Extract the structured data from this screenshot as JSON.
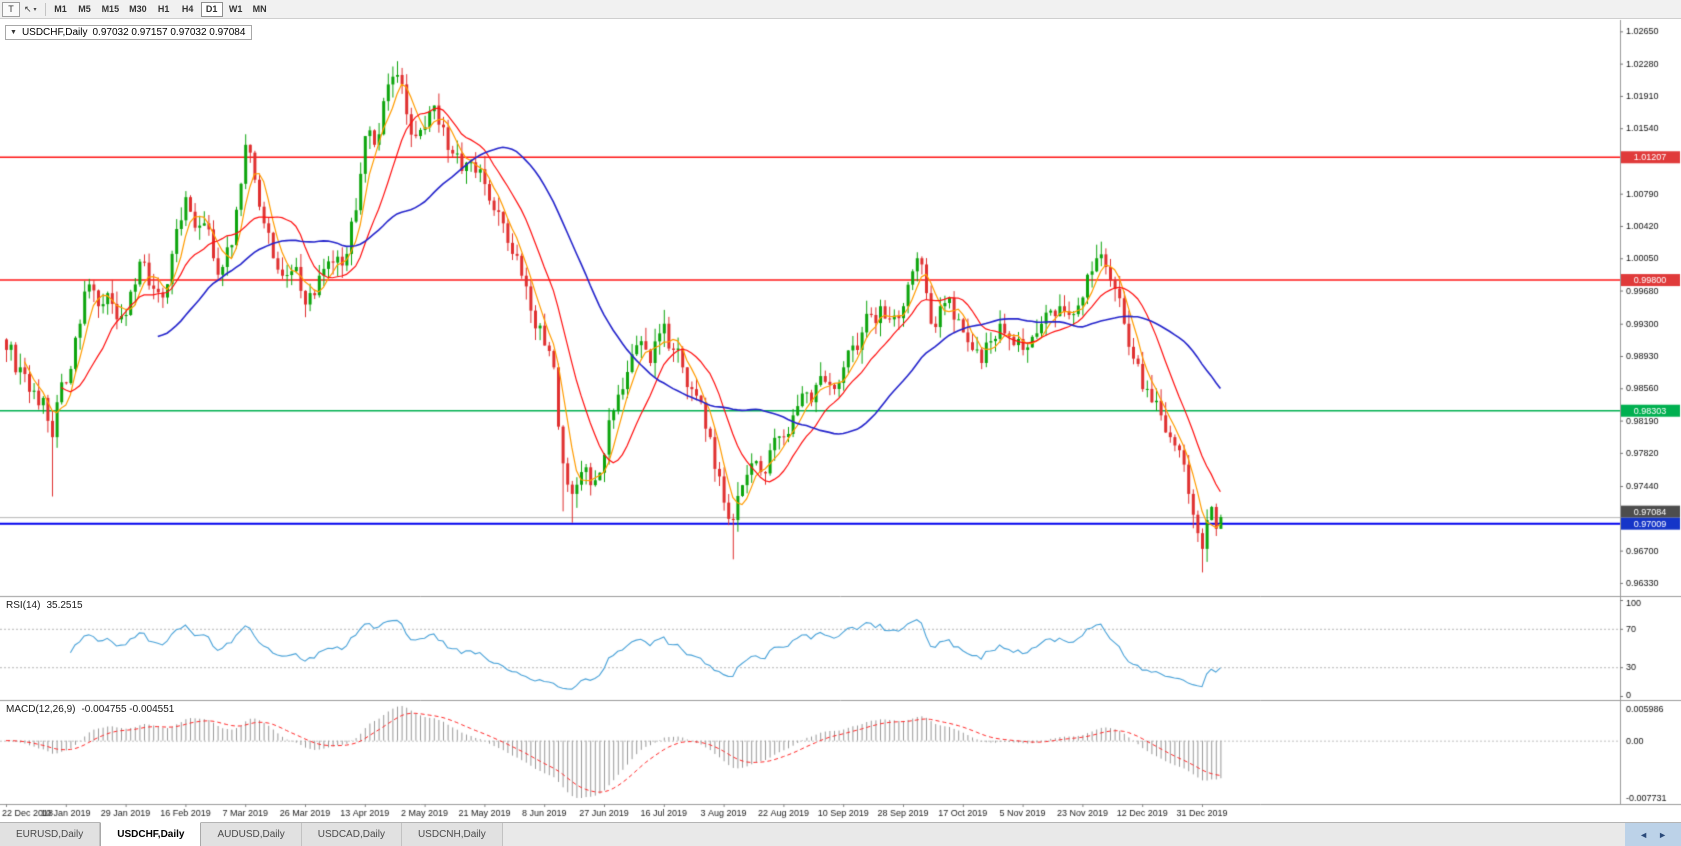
{
  "toolbar": {
    "tool1": "T",
    "tool2": "↖",
    "caret": "▾",
    "timeframes": [
      "M1",
      "M5",
      "M15",
      "M30",
      "H1",
      "H4",
      "D1",
      "W1",
      "MN"
    ],
    "active_timeframe": "D1"
  },
  "chart_header": {
    "collapse_icon": "▼",
    "symbol": "USDCHF,Daily",
    "ohlc": "0.97032 0.97157 0.97032 0.97084"
  },
  "rsi_header": {
    "label": "RSI(14)",
    "value": "35.2515"
  },
  "macd_header": {
    "label": "MACD(12,26,9)",
    "values": "-0.004755 -0.004551"
  },
  "tabs": [
    {
      "label": "EURUSD,Daily",
      "active": false
    },
    {
      "label": "USDCHF,Daily",
      "active": true
    },
    {
      "label": "AUDUSD,Daily",
      "active": false
    },
    {
      "label": "USDCAD,Daily",
      "active": false
    },
    {
      "label": "USDCNH,Daily",
      "active": false
    }
  ],
  "tab_nav": {
    "left": "◄",
    "right": "►"
  },
  "chart_data": {
    "type": "candlestick",
    "symbol": "USDCHF",
    "timeframe": "Daily",
    "x_labels": [
      "22 Dec 2018",
      "10 Jan 2019",
      "29 Jan 2019",
      "16 Feb 2019",
      "7 Mar 2019",
      "26 Mar 2019",
      "13 Apr 2019",
      "2 May 2019",
      "21 May 2019",
      "8 Jun 2019",
      "27 Jun 2019",
      "16 Jul 2019",
      "3 Aug 2019",
      "22 Aug 2019",
      "10 Sep 2019",
      "28 Sep 2019",
      "17 Oct 2019",
      "5 Nov 2019",
      "23 Nov 2019",
      "12 Dec 2019",
      "31 Dec 2019"
    ],
    "label_step": 13,
    "num_candles": 265,
    "price_axis": {
      "min": 0.9618,
      "max": 1.0278,
      "ticks": [
        "1.02650",
        "1.02280",
        "1.01910",
        "1.01540",
        "1.00790",
        "1.00420",
        "1.00050",
        "0.99680",
        "0.99300",
        "0.98930",
        "0.98560",
        "0.98190",
        "0.97820",
        "0.97440",
        "0.96700",
        "0.96330"
      ]
    },
    "hlines": [
      {
        "price": 1.01207,
        "label": "1.01207",
        "color": "#ff1414",
        "badge": "#e03a3a",
        "width": 1.6
      },
      {
        "price": 0.998,
        "label": "0.99800",
        "color": "#ff1414",
        "badge": "#e03a3a",
        "width": 1.6
      },
      {
        "price": 0.98303,
        "label": "0.98303",
        "color": "#00b050",
        "badge": "#00b050",
        "width": 1.6
      },
      {
        "price": 0.97009,
        "label": "0.97009",
        "color": "#0000ee",
        "badge": "#1535c8",
        "width": 2.0
      }
    ],
    "current_price": {
      "value": 0.97084,
      "label": "0.97084",
      "badge": "#4d4d4d"
    },
    "price_anchors": [
      [
        0,
        0.99
      ],
      [
        3,
        0.988
      ],
      [
        5,
        0.9852
      ],
      [
        8,
        0.9845
      ],
      [
        10,
        0.98
      ],
      [
        11,
        0.984
      ],
      [
        13,
        0.9862
      ],
      [
        16,
        0.993
      ],
      [
        18,
        0.9975
      ],
      [
        20,
        0.995
      ],
      [
        22,
        0.9965
      ],
      [
        24,
        0.9935
      ],
      [
        26,
        0.994
      ],
      [
        28,
        0.9975
      ],
      [
        30,
        1.0
      ],
      [
        32,
        0.997
      ],
      [
        34,
        0.996
      ],
      [
        36,
        1.001
      ],
      [
        39,
        1.0075
      ],
      [
        41,
        1.004
      ],
      [
        43,
        1.0045
      ],
      [
        45,
        1.0005
      ],
      [
        47,
        0.9995
      ],
      [
        49,
        1.002
      ],
      [
        52,
        1.0135
      ],
      [
        54,
        1.0095
      ],
      [
        56,
        1.0045
      ],
      [
        58,
        1.0005
      ],
      [
        60,
        0.9985
      ],
      [
        63,
        0.9995
      ],
      [
        65,
        0.9952
      ],
      [
        68,
        0.9985
      ],
      [
        71,
        1.0
      ],
      [
        74,
        1.001
      ],
      [
        76,
        1.006
      ],
      [
        78,
        1.0145
      ],
      [
        80,
        1.0135
      ],
      [
        82,
        1.0185
      ],
      [
        85,
        1.0215
      ],
      [
        87,
        1.017
      ],
      [
        89,
        1.0145
      ],
      [
        91,
        1.0155
      ],
      [
        93,
        1.018
      ],
      [
        95,
        1.0155
      ],
      [
        97,
        1.0125
      ],
      [
        99,
        1.0105
      ],
      [
        101,
        1.0115
      ],
      [
        104,
        1.009
      ],
      [
        106,
        1.006
      ],
      [
        108,
        1.0045
      ],
      [
        110,
        1.001
      ],
      [
        112,
        0.9985
      ],
      [
        114,
        0.9945
      ],
      [
        117,
        0.9905
      ],
      [
        119,
        0.988
      ],
      [
        121,
        0.977
      ],
      [
        123,
        0.9735
      ],
      [
        125,
        0.976
      ],
      [
        127,
        0.9745
      ],
      [
        130,
        0.978
      ],
      [
        132,
        0.983
      ],
      [
        134,
        0.9855
      ],
      [
        136,
        0.9895
      ],
      [
        138,
        0.991
      ],
      [
        140,
        0.9885
      ],
      [
        143,
        0.993
      ],
      [
        145,
        0.99
      ],
      [
        147,
        0.988
      ],
      [
        149,
        0.9855
      ],
      [
        151,
        0.984
      ],
      [
        153,
        0.98
      ],
      [
        155,
        0.9755
      ],
      [
        156,
        0.9725
      ],
      [
        158,
        0.9705
      ],
      [
        160,
        0.9745
      ],
      [
        162,
        0.977
      ],
      [
        164,
        0.976
      ],
      [
        166,
        0.9785
      ],
      [
        169,
        0.98
      ],
      [
        171,
        0.9825
      ],
      [
        173,
        0.985
      ],
      [
        175,
        0.984
      ],
      [
        177,
        0.987
      ],
      [
        179,
        0.986
      ],
      [
        182,
        0.988
      ],
      [
        184,
        0.9905
      ],
      [
        186,
        0.992
      ],
      [
        188,
        0.994
      ],
      [
        190,
        0.995
      ],
      [
        192,
        0.9935
      ],
      [
        195,
        0.995
      ],
      [
        197,
        0.999
      ],
      [
        198,
        1.0005
      ],
      [
        200,
        0.9965
      ],
      [
        201,
        0.993
      ],
      [
        203,
        0.995
      ],
      [
        205,
        0.996
      ],
      [
        207,
        0.9935
      ],
      [
        208,
        0.992
      ],
      [
        210,
        0.99
      ],
      [
        212,
        0.9885
      ],
      [
        214,
        0.991
      ],
      [
        216,
        0.993
      ],
      [
        218,
        0.9915
      ],
      [
        221,
        0.99
      ],
      [
        223,
        0.9915
      ],
      [
        225,
        0.993
      ],
      [
        227,
        0.9945
      ],
      [
        229,
        0.995
      ],
      [
        231,
        0.994
      ],
      [
        234,
        0.996
      ],
      [
        236,
        0.999
      ],
      [
        237,
        1.0005
      ],
      [
        239,
        0.9995
      ],
      [
        241,
        0.997
      ],
      [
        243,
        0.993
      ],
      [
        245,
        0.989
      ],
      [
        247,
        0.9855
      ],
      [
        249,
        0.984
      ],
      [
        251,
        0.9825
      ],
      [
        253,
        0.98
      ],
      [
        255,
        0.9785
      ],
      [
        257,
        0.9735
      ],
      [
        259,
        0.969
      ],
      [
        260,
        0.9672
      ],
      [
        261,
        0.9705
      ],
      [
        262,
        0.972
      ],
      [
        263,
        0.9695
      ],
      [
        264,
        0.97084
      ]
    ],
    "spike_lows": [
      [
        10,
        0.9732
      ],
      [
        121,
        0.9715
      ],
      [
        123,
        0.9702
      ],
      [
        158,
        0.966
      ],
      [
        260,
        0.9645
      ]
    ],
    "moving_averages": [
      {
        "period": 5,
        "color": "#ff9c00",
        "width": 1.2
      },
      {
        "period": 13,
        "color": "#ff1010",
        "width": 1.2
      },
      {
        "period": 34,
        "color": "#2525cc",
        "width": 1.6
      }
    ],
    "rsi": {
      "period": 14,
      "levels": [
        100,
        70,
        30,
        0
      ],
      "level_labels": [
        "100",
        "70",
        "30",
        "0"
      ],
      "dotted_levels": [
        70,
        30
      ],
      "color": "#4ba3d9",
      "last_value": 35.2515
    },
    "macd": {
      "fast": 12,
      "slow": 26,
      "signal": 9,
      "axis_labels": [
        "0.005986",
        "0.00",
        "-0.007731"
      ],
      "hist_color": "#9a9a9a",
      "signal_color": "#ff2a2a",
      "last_values": [
        -0.004755,
        -0.004551
      ]
    },
    "candle_colors": {
      "up": "#0da50d",
      "down": "#e03030"
    },
    "current_line_color": "#b8b8b8"
  }
}
